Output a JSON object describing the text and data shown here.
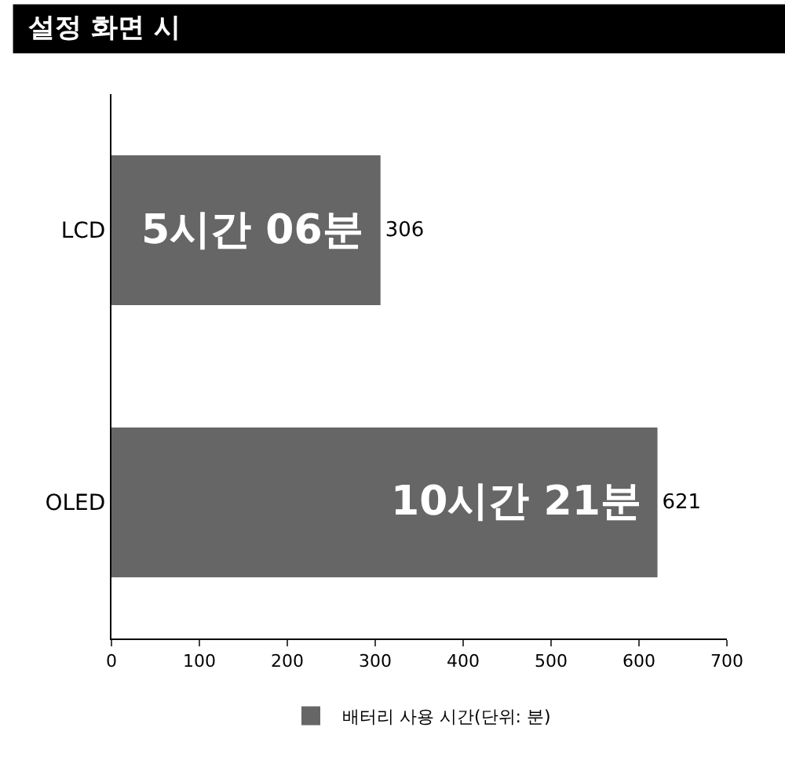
{
  "chart_data": {
    "type": "bar",
    "orientation": "horizontal",
    "title": "설정 화면 시",
    "categories": [
      "LCD",
      "OLED"
    ],
    "series": [
      {
        "name": "배터리 사용 시간(단위: 분)",
        "color": "#666666",
        "values": [
          306,
          621
        ]
      }
    ],
    "xlim": [
      0,
      700
    ],
    "xticks": [
      0,
      100,
      200,
      300,
      400,
      500,
      600,
      700
    ],
    "data_labels": true,
    "legend": "bottom",
    "annotations": [
      "5시간 06분",
      "10시간 21분"
    ]
  }
}
